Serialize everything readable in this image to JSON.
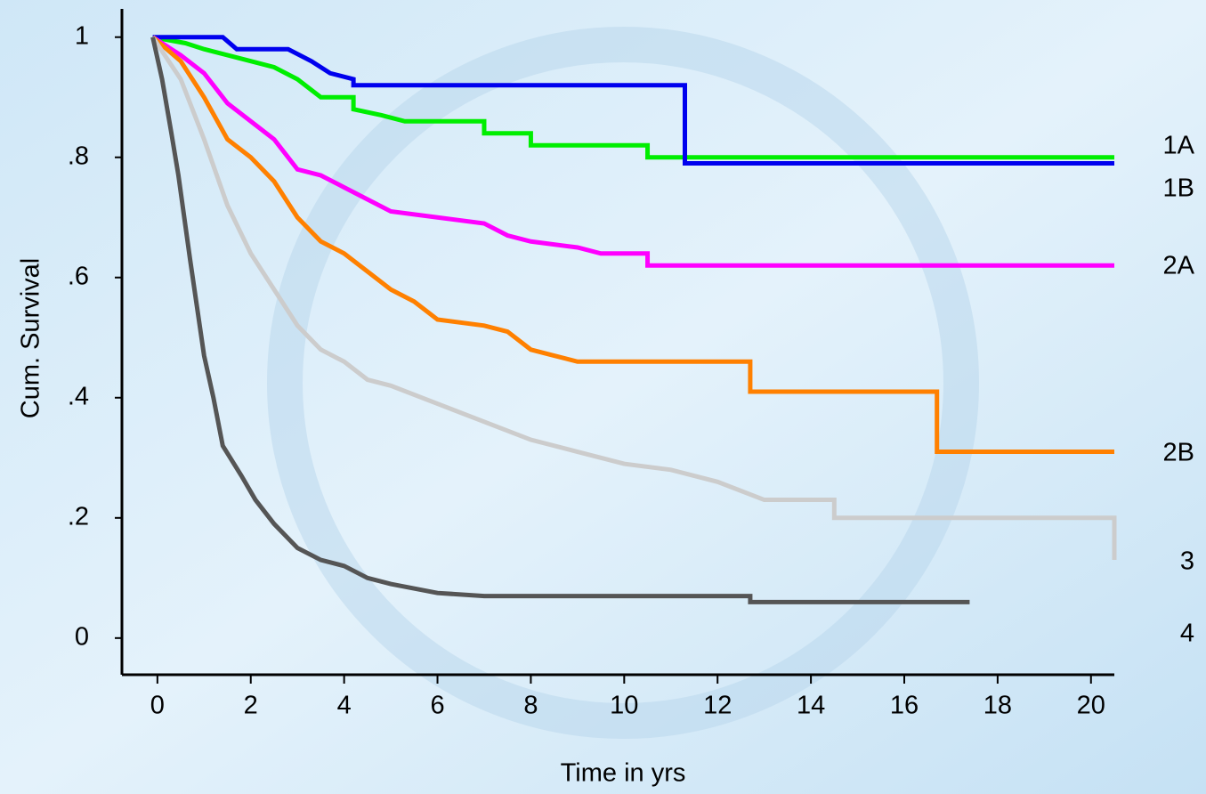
{
  "chart_data": {
    "type": "line",
    "x_label": "Time in yrs",
    "y_label": "Cum. Survival",
    "xlim": [
      -0.76,
      20.5
    ],
    "ylim": [
      -0.061,
      1.047
    ],
    "xticks": [
      0,
      2,
      4,
      6,
      8,
      10,
      12,
      14,
      16,
      18,
      20
    ],
    "yticks": [
      0,
      {
        "value": 0.2,
        "label": ".2"
      },
      {
        "value": 0.4,
        "label": ".4"
      },
      {
        "value": 0.6,
        "label": ".6"
      },
      {
        "value": 0.8,
        "label": ".8"
      },
      1
    ],
    "series": [
      {
        "name": "1A",
        "color": "#00ee00",
        "x": [
          -0.1,
          0.6,
          1.0,
          1.5,
          2.0,
          2.5,
          3.0,
          3.5,
          4.2,
          4.2,
          4.8,
          5.3,
          7.0,
          7.0,
          8.0,
          8.0,
          10.5,
          10.5,
          20.5
        ],
        "values": [
          1.0,
          0.99,
          0.98,
          0.97,
          0.96,
          0.95,
          0.93,
          0.9,
          0.9,
          0.88,
          0.87,
          0.86,
          0.86,
          0.84,
          0.84,
          0.82,
          0.82,
          0.8,
          0.8
        ]
      },
      {
        "name": "1B",
        "color": "#0000ee",
        "x": [
          -0.1,
          1.4,
          1.7,
          2.8,
          3.3,
          3.7,
          4.2,
          4.2,
          11.3,
          11.3,
          20.5
        ],
        "values": [
          1.0,
          1.0,
          0.98,
          0.98,
          0.96,
          0.94,
          0.93,
          0.92,
          0.92,
          0.79,
          0.79
        ]
      },
      {
        "name": "2A",
        "color": "#ff00ff",
        "x": [
          -0.1,
          0.5,
          1,
          1.5,
          2,
          2.5,
          3,
          3.5,
          4,
          4.5,
          5,
          6,
          7,
          7.5,
          8,
          9,
          9.5,
          10.5,
          10.5,
          20.5
        ],
        "values": [
          1,
          0.97,
          0.94,
          0.89,
          0.86,
          0.83,
          0.78,
          0.77,
          0.75,
          0.73,
          0.71,
          0.7,
          0.69,
          0.67,
          0.66,
          0.65,
          0.64,
          0.64,
          0.62,
          0.62
        ]
      },
      {
        "name": "2B",
        "color": "#ff8000",
        "x": [
          -0.1,
          0.5,
          1,
          1.5,
          2,
          2.5,
          3,
          3.5,
          4,
          4.5,
          5,
          5.5,
          6,
          7,
          7.5,
          8,
          8.5,
          9,
          12.7,
          12.7,
          16.7,
          16.7,
          20.5
        ],
        "values": [
          1,
          0.96,
          0.9,
          0.83,
          0.8,
          0.76,
          0.7,
          0.66,
          0.64,
          0.61,
          0.58,
          0.56,
          0.53,
          0.52,
          0.51,
          0.48,
          0.47,
          0.46,
          0.46,
          0.41,
          0.41,
          0.31,
          0.31
        ]
      },
      {
        "name": "3",
        "color": "#cccccc",
        "x": [
          -0.1,
          0.5,
          1,
          1.5,
          2,
          2.5,
          3,
          3.5,
          4,
          4.5,
          5,
          6,
          7,
          8,
          9,
          10,
          11,
          12,
          13,
          14.5,
          14.5,
          20.5,
          20.5
        ],
        "values": [
          1,
          0.93,
          0.83,
          0.72,
          0.64,
          0.58,
          0.52,
          0.48,
          0.46,
          0.43,
          0.42,
          0.39,
          0.36,
          0.33,
          0.31,
          0.29,
          0.28,
          0.26,
          0.23,
          0.23,
          0.2,
          0.2,
          0.13
        ]
      },
      {
        "name": "4",
        "color": "#555555",
        "x": [
          -0.1,
          0.1,
          0.3,
          0.45,
          0.7,
          1.0,
          1.2,
          1.4,
          1.8,
          2.1,
          2.5,
          3,
          3.5,
          4,
          4.5,
          5,
          6,
          7,
          12.7,
          12.7,
          17.4
        ],
        "values": [
          1,
          0.93,
          0.84,
          0.77,
          0.63,
          0.47,
          0.4,
          0.32,
          0.27,
          0.23,
          0.19,
          0.15,
          0.13,
          0.12,
          0.1,
          0.09,
          0.075,
          0.07,
          0.07,
          0.06,
          0.06
        ]
      }
    ]
  }
}
